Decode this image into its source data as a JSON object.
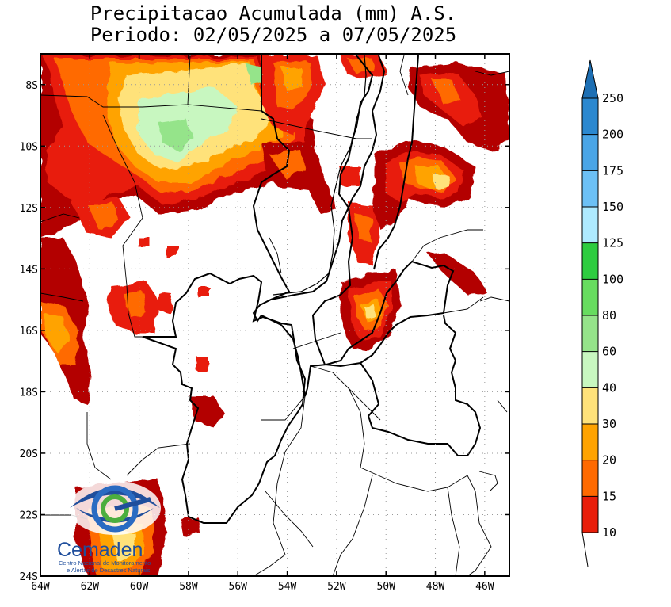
{
  "title": {
    "line1": "Precipitacao Acumulada (mm) A.S.",
    "line2": "Periodo: 02/05/2025 a 07/05/2025"
  },
  "map": {
    "lon_range": [
      -64,
      -45
    ],
    "lat_range": [
      -24,
      -7
    ],
    "x_ticks": [
      "64W",
      "62W",
      "60W",
      "58W",
      "56W",
      "54W",
      "52W",
      "50W",
      "48W",
      "46W"
    ],
    "y_ticks": [
      "8S",
      "10S",
      "12S",
      "14S",
      "16S",
      "18S",
      "20S",
      "22S",
      "24S"
    ],
    "grid": "dotted"
  },
  "colorbar": {
    "levels": [
      "250",
      "200",
      "175",
      "150",
      "125",
      "100",
      "80",
      "60",
      "40",
      "30",
      "20",
      "15",
      "10"
    ],
    "colors": [
      "#1d6fb4",
      "#2b88d0",
      "#4aa5e6",
      "#6cc0f5",
      "#aeeaff",
      "#2ecc40",
      "#67dd5f",
      "#95e48a",
      "#c8f7c0",
      "#ffe27a",
      "#ffa300",
      "#ff6a00",
      "#e81e0a",
      "#b30000"
    ]
  },
  "logo": {
    "name": "Cemaden",
    "subtitle_line1": "Centro Nacional de Monitoramento",
    "subtitle_line2": "e Alertas de Desastres Naturais"
  },
  "colors": {
    "frame": "#000000",
    "grid": "#9a9a9a"
  }
}
